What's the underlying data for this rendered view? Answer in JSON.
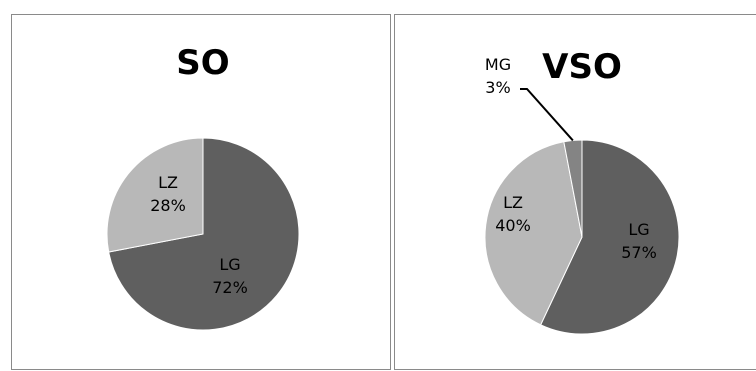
{
  "colors": {
    "LG": "#5f5f5f",
    "LZ": "#b8b8b8",
    "MG": "#848484",
    "label_dark": "#000000",
    "label_light": "#ffffff",
    "border": "#8a8a8a"
  },
  "chart_data": [
    {
      "type": "pie",
      "title": "SO",
      "slices": [
        {
          "label": "LG",
          "value": 72,
          "value_label": "72%",
          "color": "#5f5f5f"
        },
        {
          "label": "LZ",
          "value": 28,
          "value_label": "28%",
          "color": "#b8b8b8"
        }
      ],
      "start_angle_deg": 0,
      "direction": "clockwise",
      "legend": "none"
    },
    {
      "type": "pie",
      "title": "VSO",
      "slices": [
        {
          "label": "LG",
          "value": 57,
          "value_label": "57%",
          "color": "#5f5f5f"
        },
        {
          "label": "LZ",
          "value": 40,
          "value_label": "40%",
          "color": "#b8b8b8"
        },
        {
          "label": "MG",
          "value": 3,
          "value_label": "3%",
          "color": "#848484"
        }
      ],
      "start_angle_deg": 0,
      "direction": "clockwise",
      "legend": "none"
    }
  ]
}
